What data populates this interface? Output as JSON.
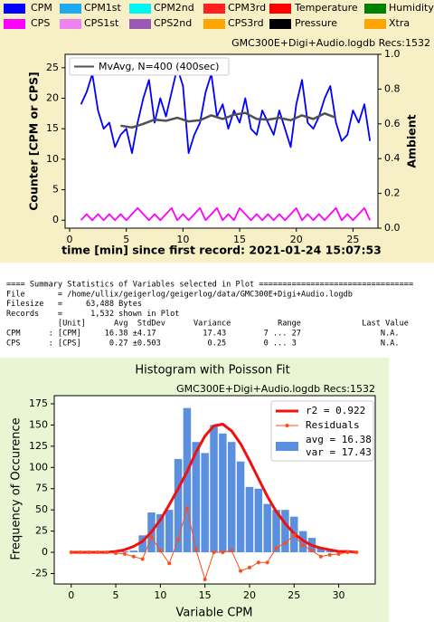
{
  "chart_data": [
    {
      "type": "line",
      "header": "GMC300E+Digi+Audio.logdb  Recs:1532",
      "x_label": "time [min] since first record: 2021-01-24 15:07:53",
      "y_label": "Counter  [CPM or CPS]",
      "y2_label": "Ambient",
      "variables": [
        {
          "name": "CPM",
          "color": "#0000ff"
        },
        {
          "name": "CPM1st",
          "color": "#1eaaf0"
        },
        {
          "name": "CPM2nd",
          "color": "#00f5f5"
        },
        {
          "name": "CPM3rd",
          "color": "#ff2020"
        },
        {
          "name": "Temperature",
          "color": "#ff0000"
        },
        {
          "name": "Humidity",
          "color": "#008000"
        },
        {
          "name": "CPS",
          "color": "#ff00ff"
        },
        {
          "name": "CPS1st",
          "color": "#ee82ee"
        },
        {
          "name": "CPS2nd",
          "color": "#9b59b6"
        },
        {
          "name": "CPS3rd",
          "color": "#ffa500"
        },
        {
          "name": "Pressure",
          "color": "#000000"
        },
        {
          "name": "Xtra",
          "color": "#ffa500"
        }
      ],
      "xlim": [
        -0.4,
        27.2
      ],
      "xticks": [
        0,
        5,
        10,
        15,
        20,
        25
      ],
      "ylim": [
        -1.3,
        27.2
      ],
      "yticks": [
        0,
        5,
        10,
        15,
        20,
        25
      ],
      "y2lim": [
        0,
        1
      ],
      "y2ticks": [
        {
          "value": 0,
          "label": "0.0"
        },
        0.2,
        0.4,
        0.6,
        0.8,
        {
          "value": 1,
          "label": "1.0"
        }
      ],
      "series": [
        {
          "name": "CPM",
          "color": "#0000ff",
          "x": [
            1,
            1.5,
            2,
            2.5,
            3,
            3.5,
            4,
            4.5,
            5,
            5.5,
            6,
            6.5,
            7,
            7.5,
            8,
            8.5,
            9,
            9.5,
            10,
            10.5,
            11,
            11.5,
            12,
            12.5,
            13,
            13.5,
            14,
            14.5,
            15,
            15.5,
            16,
            16.5,
            17,
            17.5,
            18,
            18.5,
            19,
            19.5,
            20,
            20.5,
            21,
            21.5,
            22,
            22.5,
            23,
            23.5,
            24,
            24.5,
            25,
            25.5,
            26,
            26.5
          ],
          "values": [
            19,
            21,
            24,
            18,
            15,
            16,
            12,
            14,
            15,
            11,
            16,
            20,
            23,
            16,
            20,
            17,
            21,
            25,
            22,
            11,
            14,
            16,
            21,
            24,
            17,
            19,
            15,
            18,
            16,
            20,
            15,
            14,
            18,
            16,
            14,
            18,
            15,
            12,
            19,
            23,
            16,
            15,
            17,
            20,
            22,
            16,
            13,
            14,
            18,
            16,
            19,
            13
          ]
        },
        {
          "name": "MvAvg, N=400 (400sec)",
          "color": "#505050",
          "legend": true,
          "x": [
            4.5,
            5.5,
            6.5,
            7.5,
            8.5,
            9.5,
            10.5,
            11.5,
            12.5,
            13.5,
            14.5,
            15.5,
            16.5,
            17.5,
            18.5,
            19.5,
            20.5,
            21.5,
            22.5,
            23.5
          ],
          "values": [
            15.5,
            15.2,
            15.8,
            16.5,
            16.3,
            16.8,
            16.2,
            16.4,
            17.2,
            16.6,
            17.3,
            17.6,
            16.6,
            16.5,
            16.8,
            16.4,
            17.2,
            16.6,
            17.5,
            16.8
          ]
        },
        {
          "name": "CPS",
          "color": "#ff00ff",
          "x": [
            1,
            1.5,
            2,
            2.5,
            3,
            3.5,
            4,
            4.5,
            5,
            5.5,
            6,
            6.5,
            7,
            7.5,
            8,
            8.5,
            9,
            9.5,
            10,
            10.5,
            11,
            11.5,
            12,
            12.5,
            13,
            13.5,
            14,
            14.5,
            15,
            15.5,
            16,
            16.5,
            17,
            17.5,
            18,
            18.5,
            19,
            19.5,
            20,
            20.5,
            21,
            21.5,
            22,
            22.5,
            23,
            23.5,
            24,
            24.5,
            25,
            25.5,
            26,
            26.5
          ],
          "values": [
            0,
            1,
            0,
            1,
            0,
            1,
            0,
            1,
            0,
            1,
            2,
            1,
            0,
            1,
            0,
            1,
            2,
            0,
            1,
            0,
            1,
            2,
            0,
            1,
            2,
            0,
            1,
            0,
            2,
            1,
            0,
            1,
            0,
            1,
            0,
            1,
            0,
            1,
            2,
            0,
            1,
            0,
            1,
            0,
            1,
            2,
            0,
            1,
            0,
            1,
            2,
            0
          ]
        }
      ]
    },
    {
      "type": "bar",
      "title": "Histogram with Poisson Fit",
      "header": "GMC300E+Digi+Audio.logdb  Recs:1532",
      "x_label": "Variable CPM",
      "y_label": "Frequency of Occurence",
      "xlim": [
        -1.9,
        34.1
      ],
      "xticks": [
        0,
        5,
        10,
        15,
        20,
        25,
        30
      ],
      "ylim": [
        -37.3,
        184.6
      ],
      "yticks": [
        -25,
        0,
        25,
        50,
        75,
        100,
        125,
        150,
        175
      ],
      "x": [
        0,
        1,
        2,
        3,
        4,
        5,
        6,
        7,
        8,
        9,
        10,
        11,
        12,
        13,
        14,
        15,
        16,
        17,
        18,
        19,
        20,
        21,
        22,
        23,
        24,
        25,
        26,
        27,
        28,
        29,
        30,
        31,
        32
      ],
      "series": [
        {
          "name": "r2  = 0.922",
          "type": "line",
          "color": "#f01010",
          "values": [
            0,
            0,
            0,
            0,
            0,
            1,
            3,
            7,
            13,
            24,
            38,
            56,
            75,
            95,
            118,
            137,
            149,
            151,
            143,
            128,
            108,
            87,
            66,
            48,
            34,
            22,
            14,
            8,
            5,
            3,
            1,
            1,
            0
          ]
        },
        {
          "name": "Residuals",
          "type": "line",
          "markers": true,
          "color": "#ff4d1a",
          "values": [
            0,
            0,
            0,
            0,
            0,
            -1,
            -2,
            -5,
            -8,
            18,
            2,
            -13,
            15,
            52,
            3,
            -32,
            0,
            0,
            2,
            -22,
            -18,
            -12,
            -12,
            5,
            11,
            20,
            8,
            2,
            -5,
            -3,
            -2,
            0,
            0
          ]
        },
        {
          "name": [
            "avg = 16.38",
            "var = 17.43"
          ],
          "type": "bar",
          "color": "#5b8fe0",
          "values": [
            0,
            0,
            0,
            0,
            0,
            0,
            1,
            2,
            20,
            47,
            45,
            50,
            110,
            170,
            130,
            117,
            150,
            140,
            130,
            107,
            77,
            75,
            57,
            50,
            50,
            42,
            25,
            17,
            5,
            2,
            0,
            0,
            0
          ]
        }
      ]
    }
  ],
  "summary": {
    "lines": [
      "==== Summary Statistics of Variables selected in Plot =================================",
      "File       = /home/ullix/geigerlog/geigerlog/data/GMC300E+Digi+Audio.logdb",
      "Filesize   =     63,488 Bytes",
      "Records    =      1,532 shown in Plot",
      "           [Unit]      Avg  StdDev      Variance          Range             Last Value",
      "CPM      : [CPM]     16.38 ±4.17          17.43        7 ... 27                 N.A.",
      "CPS      : [CPS]      0.27 ±0.503          0.25        0 ... 3                  N.A."
    ]
  }
}
